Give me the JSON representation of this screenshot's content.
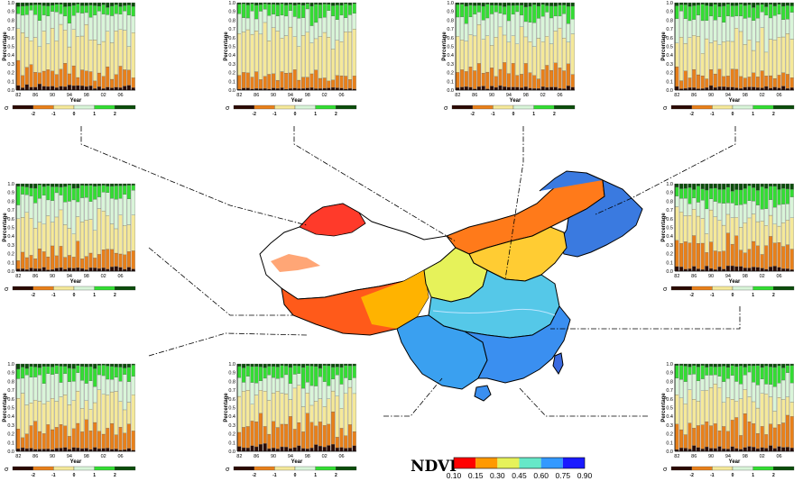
{
  "meta": {
    "y_axis_label": "Percentage",
    "x_axis_label": "Year",
    "y_ticks": [
      "0.0",
      "0.1",
      "0.2",
      "0.3",
      "0.4",
      "0.5",
      "0.6",
      "0.7",
      "0.8",
      "0.9",
      "1.0"
    ],
    "x_ticks": [
      "82",
      "86",
      "90",
      "94",
      "98",
      "02",
      "06"
    ],
    "sigma_symbol": "σ",
    "sigma_ticks": [
      "-2",
      "-1",
      "0",
      "1",
      "2"
    ],
    "class_colors": [
      "#2b0a00",
      "#e8801a",
      "#f5e99a",
      "#d9f5d9",
      "#33dd33",
      "#0b4d0b"
    ],
    "class_names": [
      "< -2σ",
      "-2σ to -1σ",
      "-1σ to 0",
      "0 to 1σ",
      "1σ to 2σ",
      "> 2σ"
    ]
  },
  "chart_data": [
    {
      "type": "bar",
      "stacked": true,
      "panel": "top-1",
      "x_first_year": 1982,
      "x_last_year": 2009,
      "ylim": [
        0,
        1
      ],
      "series_profile": {
        "brown": 0.04,
        "orange": 0.18,
        "yellow": 0.4,
        "lightgreen": 0.25,
        "green": 0.1,
        "darkgreen": 0.03
      },
      "seed": 11
    },
    {
      "type": "bar",
      "stacked": true,
      "panel": "top-2",
      "x_first_year": 1982,
      "x_last_year": 2009,
      "ylim": [
        0,
        1
      ],
      "series_profile": {
        "brown": 0.02,
        "orange": 0.14,
        "yellow": 0.45,
        "lightgreen": 0.24,
        "green": 0.13,
        "darkgreen": 0.02
      },
      "seed": 23
    },
    {
      "type": "bar",
      "stacked": true,
      "panel": "top-3",
      "x_first_year": 1982,
      "x_last_year": 2009,
      "ylim": [
        0,
        1
      ],
      "series_profile": {
        "brown": 0.03,
        "orange": 0.2,
        "yellow": 0.36,
        "lightgreen": 0.24,
        "green": 0.14,
        "darkgreen": 0.03
      },
      "seed": 37
    },
    {
      "type": "bar",
      "stacked": true,
      "panel": "top-4",
      "x_first_year": 1982,
      "x_last_year": 2009,
      "ylim": [
        0,
        1
      ],
      "series_profile": {
        "brown": 0.03,
        "orange": 0.15,
        "yellow": 0.4,
        "lightgreen": 0.26,
        "green": 0.13,
        "darkgreen": 0.03
      },
      "seed": 41
    },
    {
      "type": "bar",
      "stacked": true,
      "panel": "mid-left",
      "x_first_year": 1982,
      "x_last_year": 2009,
      "ylim": [
        0,
        1
      ],
      "series_profile": {
        "brown": 0.03,
        "orange": 0.18,
        "yellow": 0.38,
        "lightgreen": 0.24,
        "green": 0.14,
        "darkgreen": 0.03
      },
      "seed": 53
    },
    {
      "type": "bar",
      "stacked": true,
      "panel": "mid-right",
      "x_first_year": 1982,
      "x_last_year": 2009,
      "ylim": [
        0,
        1
      ],
      "series_profile": {
        "brown": 0.04,
        "orange": 0.26,
        "yellow": 0.3,
        "lightgreen": 0.2,
        "green": 0.15,
        "darkgreen": 0.05
      },
      "seed": 67
    },
    {
      "type": "bar",
      "stacked": true,
      "panel": "bottom-1",
      "x_first_year": 1982,
      "x_last_year": 2009,
      "ylim": [
        0,
        1
      ],
      "series_profile": {
        "brown": 0.03,
        "orange": 0.22,
        "yellow": 0.36,
        "lightgreen": 0.24,
        "green": 0.12,
        "darkgreen": 0.03
      },
      "seed": 71
    },
    {
      "type": "bar",
      "stacked": true,
      "panel": "bottom-2",
      "x_first_year": 1982,
      "x_last_year": 2009,
      "ylim": [
        0,
        1
      ],
      "series_profile": {
        "brown": 0.05,
        "orange": 0.25,
        "yellow": 0.35,
        "lightgreen": 0.18,
        "green": 0.14,
        "darkgreen": 0.03
      },
      "seed": 83
    },
    {
      "type": "bar",
      "stacked": true,
      "panel": "bottom-3",
      "x_first_year": 1982,
      "x_last_year": 2009,
      "ylim": [
        0,
        1
      ],
      "series_profile": {
        "brown": 0.04,
        "orange": 0.26,
        "yellow": 0.32,
        "lightgreen": 0.2,
        "green": 0.15,
        "darkgreen": 0.03
      },
      "seed": 97
    }
  ],
  "ndvi_legend": {
    "title": "NDVI",
    "ticks": [
      "0.10",
      "0.15",
      "0.30",
      "0.45",
      "0.60",
      "0.75",
      "0.90"
    ],
    "colors": [
      "#ff0000",
      "#ff9900",
      "#e6f25a",
      "#66e8c8",
      "#3399ff",
      "#1a1aff"
    ]
  }
}
